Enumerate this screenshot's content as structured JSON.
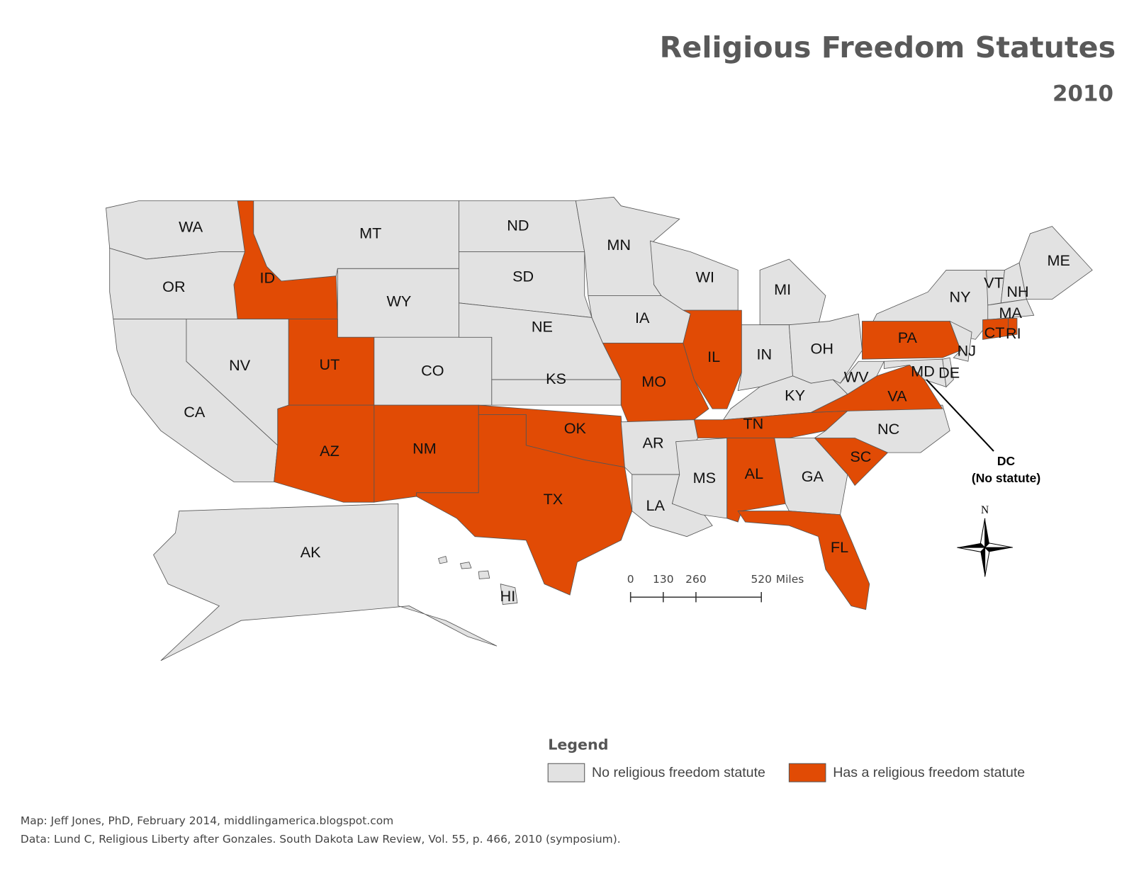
{
  "title": "Religious Freedom Statutes",
  "subtitle": "2010",
  "states": [
    {
      "label": "WA",
      "statute": false
    },
    {
      "label": "OR",
      "statute": false
    },
    {
      "label": "CA",
      "statute": false
    },
    {
      "label": "NV",
      "statute": false
    },
    {
      "label": "ID",
      "statute": true
    },
    {
      "label": "MT",
      "statute": false
    },
    {
      "label": "WY",
      "statute": false
    },
    {
      "label": "UT",
      "statute": true
    },
    {
      "label": "AZ",
      "statute": true
    },
    {
      "label": "CO",
      "statute": false
    },
    {
      "label": "NM",
      "statute": true
    },
    {
      "label": "ND",
      "statute": false
    },
    {
      "label": "SD",
      "statute": false
    },
    {
      "label": "NE",
      "statute": false
    },
    {
      "label": "KS",
      "statute": false
    },
    {
      "label": "OK",
      "statute": true
    },
    {
      "label": "TX",
      "statute": true
    },
    {
      "label": "MN",
      "statute": false
    },
    {
      "label": "IA",
      "statute": false
    },
    {
      "label": "MO",
      "statute": true
    },
    {
      "label": "AR",
      "statute": false
    },
    {
      "label": "LA",
      "statute": false
    },
    {
      "label": "WI",
      "statute": false
    },
    {
      "label": "IL",
      "statute": true
    },
    {
      "label": "MI",
      "statute": false
    },
    {
      "label": "IN",
      "statute": false
    },
    {
      "label": "OH",
      "statute": false
    },
    {
      "label": "KY",
      "statute": false
    },
    {
      "label": "TN",
      "statute": true
    },
    {
      "label": "MS",
      "statute": false
    },
    {
      "label": "AL",
      "statute": true
    },
    {
      "label": "GA",
      "statute": false
    },
    {
      "label": "FL",
      "statute": true
    },
    {
      "label": "SC",
      "statute": true
    },
    {
      "label": "NC",
      "statute": false
    },
    {
      "label": "VA",
      "statute": true
    },
    {
      "label": "WV",
      "statute": false
    },
    {
      "label": "PA",
      "statute": true
    },
    {
      "label": "NY",
      "statute": false
    },
    {
      "label": "NJ",
      "statute": false
    },
    {
      "label": "MD",
      "statute": false
    },
    {
      "label": "DE",
      "statute": false
    },
    {
      "label": "VT",
      "statute": false
    },
    {
      "label": "NH",
      "statute": false
    },
    {
      "label": "ME",
      "statute": false
    },
    {
      "label": "MA",
      "statute": false
    },
    {
      "label": "CT",
      "statute": true
    },
    {
      "label": "RI",
      "statute": true
    },
    {
      "label": "AK",
      "statute": false
    },
    {
      "label": "HI",
      "statute": false
    }
  ],
  "annotation": {
    "label": "DC",
    "note": "(No statute)"
  },
  "legend": {
    "title": "Legend",
    "items": [
      {
        "label": "No religious freedom statute",
        "color": "#e2e2e2"
      },
      {
        "label": "Has a religious freedom statute",
        "color": "#e14b05"
      }
    ]
  },
  "scale": {
    "ticks": [
      0,
      130,
      260,
      520
    ],
    "unit": "Miles"
  },
  "compass": "N",
  "credits": [
    "Map:  Jeff Jones, PhD, February 2014, middlingamerica.blogspot.com",
    "Data:  Lund C, Religious Liberty after Gonzales. South Dakota Law Review, Vol. 55, p. 466, 2010 (symposium)."
  ]
}
